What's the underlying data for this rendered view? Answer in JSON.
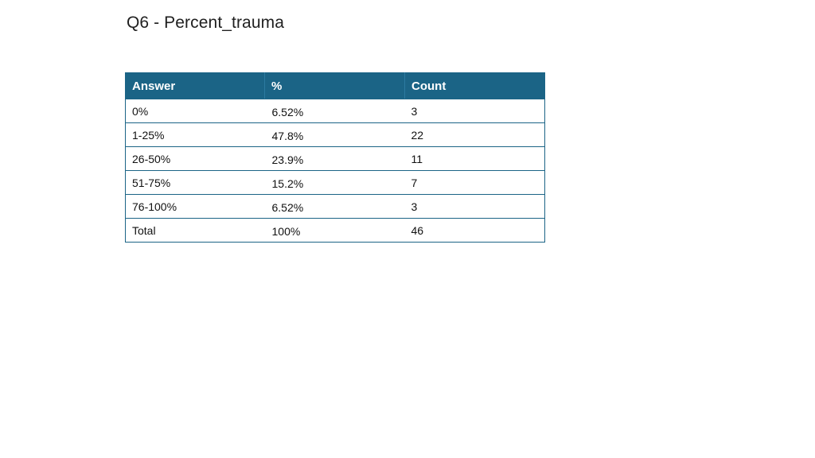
{
  "title": "Q6 - Percent_trauma",
  "table": {
    "headers": [
      "Answer",
      "%",
      "Count"
    ],
    "rows": [
      {
        "answer": "0%",
        "percent": "6.52%",
        "count": "3"
      },
      {
        "answer": "1-25%",
        "percent": "47.8%",
        "count": "22"
      },
      {
        "answer": "26-50%",
        "percent": "23.9%",
        "count": "11"
      },
      {
        "answer": "51-75%",
        "percent": "15.2%",
        "count": "7"
      },
      {
        "answer": "76-100%",
        "percent": "6.52%",
        "count": "3"
      },
      {
        "answer": "Total",
        "percent": "100%",
        "count": "46"
      }
    ]
  },
  "colors": {
    "header_background": "#1b6486",
    "header_text": "#ffffff",
    "border": "#1b6486",
    "body_text": "#111111"
  }
}
